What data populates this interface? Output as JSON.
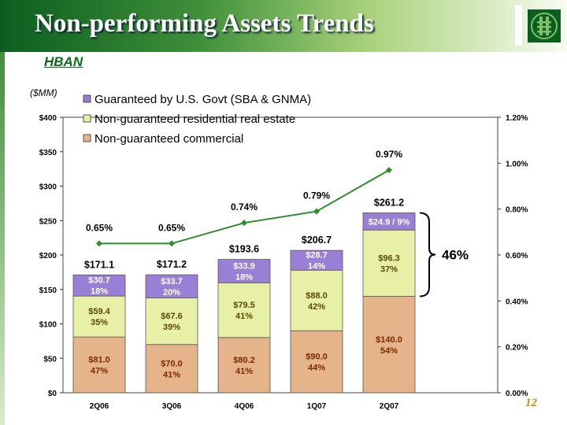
{
  "header": {
    "title": "Non-performing Assets Trends",
    "subtitle": "HBAN",
    "page_number": "12"
  },
  "colors": {
    "guaranteed": "#9a7fd6",
    "residential": "#e8f0a8",
    "commercial": "#e6b48a",
    "line": "#2e8b2e",
    "brand_green": "#0b5e1f"
  },
  "chart_data": {
    "type": "bar",
    "stacked": true,
    "unit_label": "($MM)",
    "categories": [
      "2Q06",
      "3Q06",
      "4Q06",
      "1Q07",
      "2Q07"
    ],
    "series": [
      {
        "name": "Non-guaranteed commercial",
        "values": [
          81.0,
          70.0,
          80.2,
          90.0,
          140.0
        ],
        "labels": [
          "$81.0\n47%",
          "$70.0\n41%",
          "$80.2\n41%",
          "$90.0\n44%",
          "$140.0\n54%"
        ]
      },
      {
        "name": "Non-guaranteed residential real estate",
        "values": [
          59.4,
          67.6,
          79.5,
          88.0,
          96.3
        ],
        "labels": [
          "$59.4\n35%",
          "$67.6\n39%",
          "$79.5\n41%",
          "$88.0\n42%",
          "$96.3\n37%"
        ]
      },
      {
        "name": "Guaranteed by U.S. Govt (SBA & GNMA)",
        "values": [
          30.7,
          33.7,
          33.9,
          28.7,
          24.9
        ],
        "labels": [
          "$30.7\n18%",
          "$33.7\n20%",
          "$33.9\n18%",
          "$28.7\n14%",
          "$24.9 / 9%"
        ]
      }
    ],
    "totals": [
      "$171.1",
      "$171.2",
      "$193.6",
      "$206.7",
      "$261.2"
    ],
    "line": {
      "values": [
        0.65,
        0.65,
        0.74,
        0.79,
        0.97
      ],
      "labels": [
        "0.65%",
        "0.65%",
        "0.74%",
        "0.79%",
        "0.97%"
      ]
    },
    "ylim": [
      0,
      400
    ],
    "y_ticks": [
      "$0",
      "$50",
      "$100",
      "$150",
      "$200",
      "$250",
      "$300",
      "$350",
      "$400"
    ],
    "y2lim": [
      0,
      1.2
    ],
    "y2_ticks": [
      "0.00%",
      "0.20%",
      "0.40%",
      "0.60%",
      "0.80%",
      "1.00%",
      "1.20%"
    ],
    "legend_position": "top-left",
    "annotation": "46%"
  }
}
